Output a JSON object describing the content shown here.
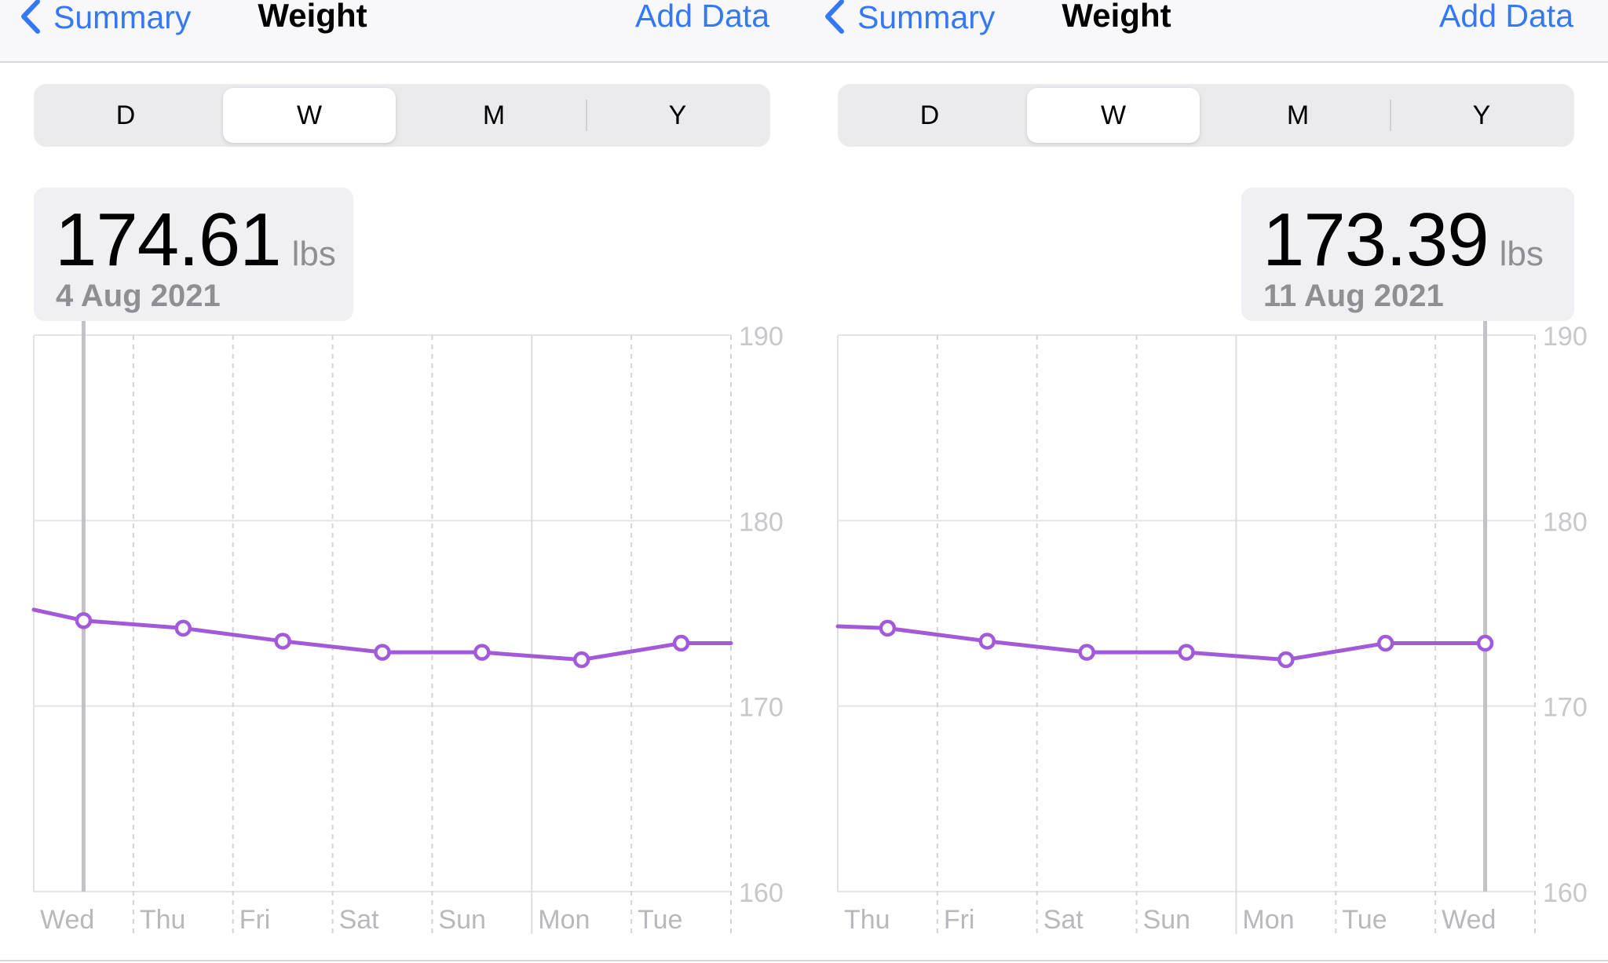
{
  "panels": [
    {
      "nav": {
        "back_label": "Summary",
        "title": "Weight",
        "action_label": "Add Data"
      },
      "segments": [
        "D",
        "W",
        "M",
        "Y"
      ],
      "selected_segment": "W",
      "selection": {
        "value": "174.61",
        "unit": "lbs",
        "date": "4 Aug 2021"
      },
      "chart_data": {
        "type": "line",
        "x": [
          "Wed",
          "Thu",
          "Fri",
          "Sat",
          "Sun",
          "Mon",
          "Tue"
        ],
        "series": [
          {
            "values": [
              174.61,
              174.2,
              173.5,
              172.9,
              172.9,
              172.5,
              173.39
            ]
          }
        ],
        "lead_in_value": 175.2,
        "trail_value": 173.39,
        "y_ticks": [
          "190",
          "180",
          "170",
          "160"
        ],
        "ylim": [
          160,
          190
        ],
        "selected_index": 0,
        "grid": true,
        "line_color": "#a35ad8"
      }
    },
    {
      "nav": {
        "back_label": "Summary",
        "title": "Weight",
        "action_label": "Add Data"
      },
      "segments": [
        "D",
        "W",
        "M",
        "Y"
      ],
      "selected_segment": "W",
      "selection": {
        "value": "173.39",
        "unit": "lbs",
        "date": "11 Aug 2021"
      },
      "chart_data": {
        "type": "line",
        "x": [
          "Thu",
          "Fri",
          "Sat",
          "Sun",
          "Mon",
          "Tue",
          "Wed"
        ],
        "series": [
          {
            "values": [
              174.2,
              173.5,
              172.9,
              172.9,
              172.5,
              173.39,
              173.39
            ]
          }
        ],
        "lead_in_value": 174.3,
        "trail_value": null,
        "y_ticks": [
          "190",
          "180",
          "170",
          "160"
        ],
        "ylim": [
          160,
          190
        ],
        "selected_index": 6,
        "grid": true,
        "line_color": "#a35ad8"
      }
    }
  ],
  "colors": {
    "accent": "#3478f6",
    "series": "#a35ad8",
    "secondary_text": "#8e8e93"
  }
}
